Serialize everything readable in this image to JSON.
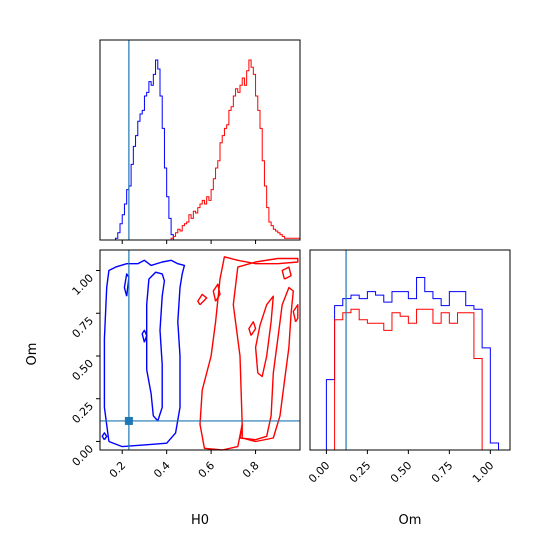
{
  "chart_data": [
    {
      "type": "histogram",
      "panel": "H0 marginal",
      "xlim": [
        0.1,
        1.0
      ],
      "bins_x": [
        0.1,
        0.11,
        0.12,
        0.13,
        0.14,
        0.15,
        0.16,
        0.17,
        0.18,
        0.19,
        0.2,
        0.21,
        0.22,
        0.23,
        0.24,
        0.25,
        0.26,
        0.27,
        0.28,
        0.29,
        0.3,
        0.31,
        0.32,
        0.33,
        0.34,
        0.35,
        0.36,
        0.37,
        0.38,
        0.39,
        0.4,
        0.41,
        0.42,
        0.43,
        0.44,
        0.45,
        0.46,
        0.47,
        0.48,
        0.49,
        0.5,
        0.51,
        0.52,
        0.53,
        0.54,
        0.55,
        0.56,
        0.57,
        0.58,
        0.59,
        0.6,
        0.61,
        0.62,
        0.63,
        0.64,
        0.65,
        0.66,
        0.67,
        0.68,
        0.69,
        0.7,
        0.71,
        0.72,
        0.73,
        0.74,
        0.75,
        0.76,
        0.77,
        0.78,
        0.79,
        0.8,
        0.81,
        0.82,
        0.83,
        0.84,
        0.85,
        0.86,
        0.87,
        0.88,
        0.89,
        0.9,
        0.91,
        0.92,
        0.93,
        0.94,
        0.95,
        0.96,
        0.97,
        0.98,
        0.99,
        1.0
      ],
      "series": [
        {
          "color": "#0000ff",
          "counts": [
            0,
            0,
            0,
            0,
            0,
            0,
            0,
            0.01,
            0.04,
            0.09,
            0.14,
            0.2,
            0.28,
            0.3,
            0.42,
            0.52,
            0.58,
            0.66,
            0.7,
            0.72,
            0.8,
            0.82,
            0.88,
            0.86,
            0.92,
            1.0,
            0.95,
            0.8,
            0.62,
            0.4,
            0.24,
            0.12,
            0.03,
            0,
            0,
            0,
            0,
            0,
            0,
            0,
            0,
            0,
            0,
            0,
            0,
            0,
            0,
            0,
            0,
            0,
            0,
            0,
            0,
            0,
            0,
            0,
            0,
            0,
            0,
            0,
            0,
            0,
            0,
            0,
            0,
            0,
            0,
            0,
            0,
            0,
            0,
            0,
            0,
            0,
            0,
            0,
            0,
            0,
            0,
            0,
            0,
            0,
            0,
            0,
            0,
            0,
            0,
            0,
            0,
            0
          ]
        },
        {
          "color": "#ff0000",
          "counts": [
            0,
            0,
            0,
            0,
            0,
            0,
            0,
            0,
            0,
            0,
            0,
            0,
            0,
            0,
            0,
            0,
            0,
            0,
            0,
            0,
            0,
            0,
            0,
            0,
            0,
            0,
            0,
            0,
            0,
            0,
            0,
            0,
            0.01,
            0.02,
            0.04,
            0.06,
            0.05,
            0.08,
            0.09,
            0.1,
            0.14,
            0.12,
            0.16,
            0.15,
            0.18,
            0.2,
            0.22,
            0.2,
            0.24,
            0.22,
            0.28,
            0.34,
            0.4,
            0.44,
            0.54,
            0.58,
            0.62,
            0.64,
            0.72,
            0.74,
            0.8,
            0.84,
            0.82,
            0.86,
            0.9,
            0.86,
            0.94,
            1.0,
            0.96,
            0.92,
            0.8,
            0.72,
            0.62,
            0.44,
            0.3,
            0.18,
            0.1,
            0.08,
            0.06,
            0.05,
            0.04,
            0.03,
            0.02,
            0.01,
            0.01,
            0.01,
            0.01,
            0.01,
            0.01,
            0.01
          ]
        }
      ],
      "truth_line": {
        "x": 0.23,
        "color": "#1f77b4"
      }
    },
    {
      "type": "contour",
      "panel": "H0 vs Om",
      "xlabel": "H0",
      "ylabel": "Om",
      "xlim": [
        0.1,
        1.0
      ],
      "ylim": [
        -0.05,
        1.12
      ],
      "x_ticks": [
        "0.2",
        "0.4",
        "0.6",
        "0.8"
      ],
      "x_tick_values": [
        0.2,
        0.4,
        0.6,
        0.8
      ],
      "y_ticks": [
        "0.00",
        "0.25",
        "0.50",
        "0.75",
        "1.00"
      ],
      "y_tick_values": [
        0.0,
        0.25,
        0.5,
        0.75,
        1.0
      ],
      "series": [
        {
          "color": "#0000ff",
          "contours": [
            [
              [
                0.14,
                0.0
              ],
              [
                0.12,
                0.2
              ],
              [
                0.12,
                0.6
              ],
              [
                0.13,
                0.9
              ],
              [
                0.14,
                1.0
              ],
              [
                0.17,
                1.02
              ],
              [
                0.22,
                1.04
              ],
              [
                0.27,
                1.04
              ],
              [
                0.3,
                1.06
              ],
              [
                0.33,
                1.03
              ],
              [
                0.38,
                1.05
              ],
              [
                0.42,
                1.06
              ],
              [
                0.45,
                1.04
              ],
              [
                0.48,
                1.03
              ],
              [
                0.47,
                0.98
              ],
              [
                0.46,
                0.9
              ],
              [
                0.45,
                0.7
              ],
              [
                0.46,
                0.5
              ],
              [
                0.46,
                0.2
              ],
              [
                0.44,
                0.05
              ],
              [
                0.4,
                -0.01
              ],
              [
                0.3,
                -0.02
              ],
              [
                0.2,
                -0.03
              ],
              [
                0.14,
                0.0
              ]
            ],
            [
              [
                0.31,
                0.42
              ],
              [
                0.31,
                0.8
              ],
              [
                0.32,
                0.95
              ],
              [
                0.35,
                0.99
              ],
              [
                0.38,
                0.98
              ],
              [
                0.39,
                0.94
              ],
              [
                0.38,
                0.85
              ],
              [
                0.37,
                0.65
              ],
              [
                0.38,
                0.45
              ],
              [
                0.38,
                0.2
              ],
              [
                0.36,
                0.12
              ],
              [
                0.34,
                0.15
              ],
              [
                0.33,
                0.28
              ],
              [
                0.31,
                0.42
              ]
            ],
            [
              [
                0.22,
                0.85
              ],
              [
                0.21,
                0.9
              ],
              [
                0.22,
                0.98
              ],
              [
                0.23,
                0.96
              ],
              [
                0.22,
                0.85
              ]
            ],
            [
              [
                0.12,
                0.01
              ],
              [
                0.11,
                0.03
              ],
              [
                0.12,
                0.05
              ],
              [
                0.13,
                0.03
              ],
              [
                0.12,
                0.01
              ]
            ],
            [
              [
                0.3,
                0.58
              ],
              [
                0.29,
                0.63
              ],
              [
                0.3,
                0.65
              ],
              [
                0.31,
                0.62
              ],
              [
                0.3,
                0.58
              ]
            ]
          ]
        },
        {
          "color": "#ff0000",
          "contours": [
            [
              [
                0.64,
                0.95
              ],
              [
                0.62,
                0.7
              ],
              [
                0.6,
                0.5
              ],
              [
                0.56,
                0.3
              ],
              [
                0.55,
                0.1
              ],
              [
                0.57,
                -0.04
              ],
              [
                0.65,
                -0.05
              ],
              [
                0.72,
                -0.03
              ],
              [
                0.74,
                0.1
              ],
              [
                0.73,
                0.5
              ],
              [
                0.7,
                0.8
              ],
              [
                0.72,
                1.02
              ],
              [
                0.8,
                1.05
              ],
              [
                0.9,
                1.07
              ],
              [
                0.99,
                1.07
              ],
              [
                0.99,
                1.05
              ],
              [
                0.9,
                1.04
              ],
              [
                0.8,
                1.04
              ],
              [
                0.72,
                1.06
              ],
              [
                0.66,
                1.08
              ],
              [
                0.64,
                0.95
              ]
            ],
            [
              [
                0.74,
                0.1
              ],
              [
                0.73,
                0.02
              ],
              [
                0.8,
                0.01
              ],
              [
                0.85,
                0.03
              ],
              [
                0.87,
                0.15
              ],
              [
                0.88,
                0.4
              ],
              [
                0.9,
                0.6
              ],
              [
                0.92,
                0.8
              ],
              [
                0.95,
                0.9
              ],
              [
                0.97,
                0.88
              ],
              [
                0.96,
                0.75
              ],
              [
                0.95,
                0.55
              ],
              [
                0.93,
                0.35
              ],
              [
                0.91,
                0.15
              ],
              [
                0.88,
                0.02
              ],
              [
                0.8,
                0.0
              ],
              [
                0.74,
                0.02
              ],
              [
                0.74,
                0.1
              ]
            ],
            [
              [
                0.81,
                0.4
              ],
              [
                0.8,
                0.55
              ],
              [
                0.82,
                0.68
              ],
              [
                0.85,
                0.8
              ],
              [
                0.88,
                0.85
              ],
              [
                0.87,
                0.7
              ],
              [
                0.85,
                0.5
              ],
              [
                0.83,
                0.38
              ],
              [
                0.81,
                0.4
              ]
            ],
            [
              [
                0.55,
                0.8
              ],
              [
                0.54,
                0.82
              ],
              [
                0.56,
                0.86
              ],
              [
                0.58,
                0.84
              ],
              [
                0.55,
                0.8
              ]
            ],
            [
              [
                0.62,
                0.82
              ],
              [
                0.61,
                0.88
              ],
              [
                0.63,
                0.92
              ],
              [
                0.64,
                0.86
              ],
              [
                0.62,
                0.82
              ]
            ],
            [
              [
                0.78,
                0.62
              ],
              [
                0.77,
                0.66
              ],
              [
                0.79,
                0.7
              ],
              [
                0.8,
                0.66
              ],
              [
                0.78,
                0.62
              ]
            ],
            [
              [
                0.98,
                0.7
              ],
              [
                0.97,
                0.76
              ],
              [
                0.99,
                0.8
              ],
              [
                0.99,
                0.72
              ],
              [
                0.98,
                0.7
              ]
            ],
            [
              [
                0.93,
                0.95
              ],
              [
                0.92,
                1.0
              ],
              [
                0.95,
                1.02
              ],
              [
                0.96,
                0.97
              ],
              [
                0.93,
                0.95
              ]
            ]
          ]
        }
      ],
      "truth_point": {
        "x": 0.23,
        "y": 0.12,
        "color": "#1f77b4"
      }
    },
    {
      "type": "histogram",
      "panel": "Om marginal",
      "xlabel": "Om",
      "xlim": [
        -0.1,
        1.12
      ],
      "x_ticks": [
        "0.00",
        "0.25",
        "0.50",
        "0.75",
        "1.00"
      ],
      "x_tick_values": [
        0.0,
        0.25,
        0.5,
        0.75,
        1.0
      ],
      "bins_x": [
        -0.05,
        0.0,
        0.05,
        0.1,
        0.15,
        0.2,
        0.25,
        0.3,
        0.35,
        0.4,
        0.45,
        0.5,
        0.55,
        0.6,
        0.65,
        0.7,
        0.75,
        0.8,
        0.85,
        0.9,
        0.95,
        1.0,
        1.05
      ],
      "series": [
        {
          "color": "#0000ff",
          "counts": [
            0,
            0.4,
            0.82,
            0.86,
            0.88,
            0.86,
            0.9,
            0.88,
            0.84,
            0.9,
            0.9,
            0.86,
            0.98,
            0.9,
            0.86,
            0.82,
            0.9,
            0.9,
            0.82,
            0.8,
            0.58,
            0.04
          ]
        },
        {
          "color": "#ff0000",
          "counts": [
            0,
            0,
            0.74,
            0.78,
            0.8,
            0.74,
            0.72,
            0.72,
            0.68,
            0.78,
            0.76,
            0.72,
            0.8,
            0.8,
            0.72,
            0.78,
            0.72,
            0.78,
            0.78,
            0.52,
            0,
            0
          ]
        }
      ],
      "truth_line": {
        "x": 0.12,
        "color": "#1f77b4"
      }
    }
  ],
  "xlabel_bottom_left": "H0",
  "xlabel_bottom_right": "Om",
  "ylabel_left": "Om"
}
